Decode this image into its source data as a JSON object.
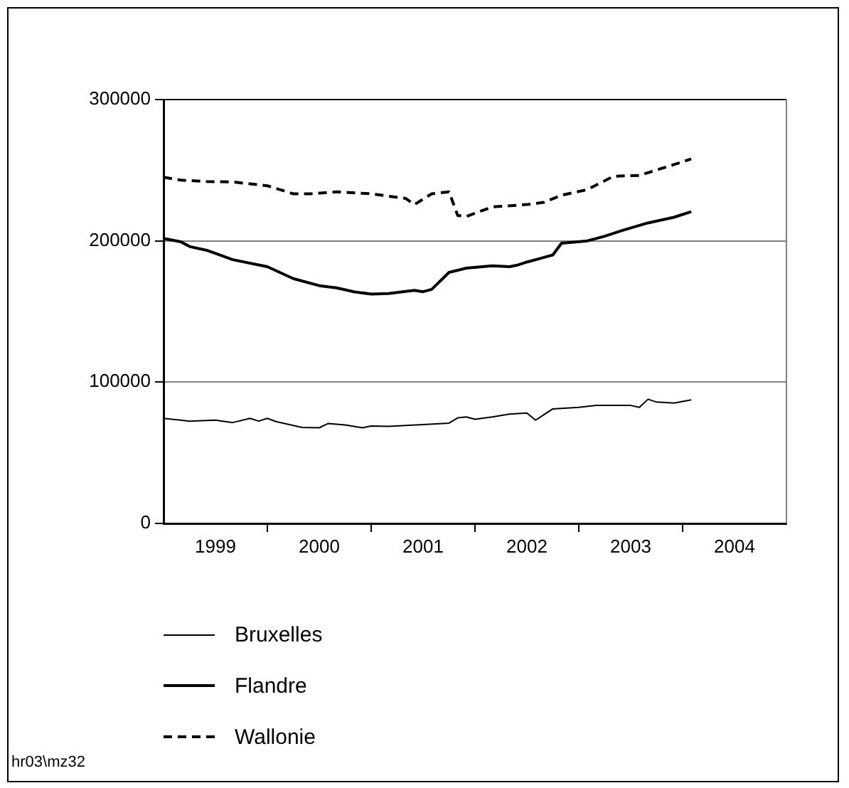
{
  "chart_data": {
    "type": "line",
    "xlim": [
      "1999-01",
      "2005-01"
    ],
    "xticks": [
      {
        "value": "1999-07",
        "label": "1999"
      },
      {
        "value": "2000-01",
        "label": null
      },
      {
        "value": "2000-07",
        "label": "2000"
      },
      {
        "value": "2001-01",
        "label": null
      },
      {
        "value": "2001-07",
        "label": "2001"
      },
      {
        "value": "2002-01",
        "label": null
      },
      {
        "value": "2002-07",
        "label": "2002"
      },
      {
        "value": "2003-01",
        "label": null
      },
      {
        "value": "2003-07",
        "label": "2003"
      },
      {
        "value": "2004-01",
        "label": null
      },
      {
        "value": "2004-07",
        "label": "2004"
      }
    ],
    "ylim": [
      0,
      300000
    ],
    "yticks": [
      0,
      100000,
      200000,
      300000
    ],
    "grid": "y",
    "legend": "bottom left",
    "marker": "none",
    "annotations": [
      "hr03\\mz32"
    ],
    "series": [
      {
        "name": "Bruxelles",
        "color": "#000000",
        "line_style": "solid",
        "x": [
          "1999-01",
          "1999-04",
          "1999-07",
          "1999-09",
          "1999-11",
          "1999-12",
          "2000-01",
          "2000-02",
          "2000-05",
          "2000-07",
          "2000-08",
          "2000-10",
          "2000-12",
          "2001-01",
          "2001-03",
          "2001-07",
          "2001-10",
          "2001-11",
          "2001-12",
          "2002-01",
          "2002-03",
          "2002-05",
          "2002-07",
          "2002-08",
          "2002-10",
          "2003-01",
          "2003-03",
          "2003-07",
          "2003-08",
          "2003-09",
          "2003-10",
          "2003-12",
          "2004-02"
        ],
        "values": [
          74400,
          72400,
          73100,
          71400,
          74400,
          72400,
          74400,
          72100,
          68000,
          67700,
          70700,
          69700,
          67700,
          69000,
          68700,
          70000,
          71000,
          74700,
          75400,
          73700,
          75400,
          77400,
          78100,
          73100,
          81100,
          82200,
          83500,
          83500,
          82200,
          87900,
          85900,
          85200,
          87500
        ]
      },
      {
        "name": "Flandre",
        "color": "#000000",
        "line_style": "solid",
        "x": [
          "1999-01",
          "1999-03",
          "1999-04",
          "1999-06",
          "1999-09",
          "2000-01",
          "2000-04",
          "2000-07",
          "2000-09",
          "2000-11",
          "2001-01",
          "2001-03",
          "2001-06",
          "2001-07",
          "2001-08",
          "2001-10",
          "2001-12",
          "2002-03",
          "2002-05",
          "2002-06",
          "2002-07",
          "2002-10",
          "2002-11",
          "2003-02",
          "2003-04",
          "2003-06",
          "2003-09",
          "2003-12",
          "2004-02"
        ],
        "values": [
          201700,
          199300,
          196000,
          193300,
          186700,
          181700,
          173300,
          168300,
          166700,
          164000,
          162300,
          162700,
          165000,
          164000,
          165700,
          177700,
          180700,
          182300,
          181700,
          183000,
          185000,
          190000,
          198300,
          200000,
          203300,
          207300,
          212700,
          216700,
          220700
        ]
      },
      {
        "name": "Wallonie",
        "color": "#000000",
        "line_style": "dashed",
        "x": [
          "1999-01",
          "1999-03",
          "1999-06",
          "1999-09",
          "2000-01",
          "2000-04",
          "2000-06",
          "2000-09",
          "2001-01",
          "2001-05",
          "2001-06",
          "2001-08",
          "2001-10",
          "2001-11",
          "2001-12",
          "2002-03",
          "2002-07",
          "2002-09",
          "2002-11",
          "2003-02",
          "2003-05",
          "2003-08",
          "2003-12",
          "2004-02"
        ],
        "values": [
          245000,
          243000,
          242000,
          241700,
          239000,
          233300,
          233300,
          234700,
          233300,
          230000,
          225700,
          233300,
          234700,
          218000,
          217300,
          224000,
          225700,
          227300,
          232300,
          236300,
          245700,
          246300,
          254000,
          258000
        ]
      }
    ]
  }
}
